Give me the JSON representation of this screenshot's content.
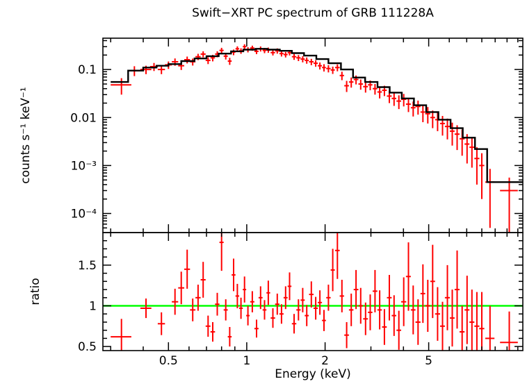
{
  "title": "Swift−XRT PC spectrum of GRB 111228A",
  "colors": {
    "data": "#ff0000",
    "model": "#000000",
    "ratio_line": "#00ff00",
    "axis": "#000000"
  },
  "chart_data": [
    {
      "type": "scatter",
      "panel": "spectrum",
      "title": "Swift−XRT PC spectrum of GRB 111228A",
      "xlabel": "Energy (keV)",
      "ylabel": "counts s⁻¹ keV⁻¹",
      "xscale": "log",
      "yscale": "log",
      "xlim": [
        0.28,
        11.5
      ],
      "ylim": [
        4e-05,
        0.45
      ],
      "grid": false,
      "legend": "none",
      "xticks": [
        {
          "v": 0.5,
          "label": "0.5"
        },
        {
          "v": 1,
          "label": "1"
        },
        {
          "v": 2,
          "label": "2"
        },
        {
          "v": 5,
          "label": "5"
        }
      ],
      "yticks": [
        {
          "v": 0.1,
          "label": "0.1"
        },
        {
          "v": 0.01,
          "label": "0.01"
        },
        {
          "v": 0.001,
          "label": "10⁻³"
        },
        {
          "v": 0.0001,
          "label": "10⁻⁴"
        }
      ],
      "points_format": [
        "energy_keV",
        "energy_halfwidth",
        "counts_s_keV",
        "counts_error"
      ],
      "points": [
        [
          0.33,
          0.03,
          0.048,
          0.018
        ],
        [
          0.37,
          0.02,
          0.095,
          0.022
        ],
        [
          0.41,
          0.02,
          0.1,
          0.02
        ],
        [
          0.44,
          0.015,
          0.115,
          0.022
        ],
        [
          0.47,
          0.015,
          0.1,
          0.02
        ],
        [
          0.5,
          0.015,
          0.125,
          0.022
        ],
        [
          0.53,
          0.015,
          0.145,
          0.025
        ],
        [
          0.56,
          0.015,
          0.12,
          0.022
        ],
        [
          0.59,
          0.015,
          0.16,
          0.026
        ],
        [
          0.62,
          0.015,
          0.145,
          0.024
        ],
        [
          0.65,
          0.015,
          0.185,
          0.028
        ],
        [
          0.68,
          0.015,
          0.21,
          0.03
        ],
        [
          0.71,
          0.015,
          0.155,
          0.025
        ],
        [
          0.74,
          0.015,
          0.175,
          0.027
        ],
        [
          0.77,
          0.015,
          0.21,
          0.03
        ],
        [
          0.8,
          0.015,
          0.25,
          0.033
        ],
        [
          0.83,
          0.015,
          0.19,
          0.028
        ],
        [
          0.86,
          0.015,
          0.15,
          0.025
        ],
        [
          0.89,
          0.015,
          0.23,
          0.031
        ],
        [
          0.92,
          0.015,
          0.27,
          0.034
        ],
        [
          0.95,
          0.015,
          0.245,
          0.032
        ],
        [
          0.98,
          0.015,
          0.3,
          0.036
        ],
        [
          1.01,
          0.015,
          0.26,
          0.033
        ],
        [
          1.05,
          0.02,
          0.28,
          0.034
        ],
        [
          1.09,
          0.02,
          0.24,
          0.031
        ],
        [
          1.13,
          0.02,
          0.27,
          0.033
        ],
        [
          1.17,
          0.02,
          0.25,
          0.031
        ],
        [
          1.21,
          0.02,
          0.255,
          0.032
        ],
        [
          1.26,
          0.025,
          0.225,
          0.029
        ],
        [
          1.31,
          0.025,
          0.245,
          0.031
        ],
        [
          1.36,
          0.025,
          0.215,
          0.028
        ],
        [
          1.41,
          0.025,
          0.205,
          0.027
        ],
        [
          1.46,
          0.025,
          0.225,
          0.029
        ],
        [
          1.52,
          0.03,
          0.185,
          0.026
        ],
        [
          1.58,
          0.03,
          0.175,
          0.025
        ],
        [
          1.64,
          0.03,
          0.165,
          0.024
        ],
        [
          1.7,
          0.03,
          0.155,
          0.023
        ],
        [
          1.77,
          0.035,
          0.145,
          0.022
        ],
        [
          1.84,
          0.035,
          0.135,
          0.021
        ],
        [
          1.91,
          0.035,
          0.12,
          0.02
        ],
        [
          1.98,
          0.035,
          0.11,
          0.019
        ],
        [
          2.06,
          0.04,
          0.105,
          0.018
        ],
        [
          2.14,
          0.04,
          0.098,
          0.017
        ],
        [
          2.23,
          0.045,
          0.11,
          0.018
        ],
        [
          2.32,
          0.045,
          0.075,
          0.015
        ],
        [
          2.42,
          0.05,
          0.046,
          0.012
        ],
        [
          2.52,
          0.05,
          0.055,
          0.013
        ],
        [
          2.63,
          0.055,
          0.062,
          0.013
        ],
        [
          2.74,
          0.055,
          0.05,
          0.012
        ],
        [
          2.86,
          0.06,
          0.044,
          0.011
        ],
        [
          2.98,
          0.06,
          0.048,
          0.011
        ],
        [
          3.11,
          0.065,
          0.04,
          0.01
        ],
        [
          3.24,
          0.065,
          0.034,
          0.009
        ],
        [
          3.38,
          0.07,
          0.037,
          0.009
        ],
        [
          3.53,
          0.075,
          0.028,
          0.008
        ],
        [
          3.68,
          0.075,
          0.025,
          0.0075
        ],
        [
          3.84,
          0.08,
          0.022,
          0.007
        ],
        [
          4.01,
          0.09,
          0.024,
          0.007
        ],
        [
          4.18,
          0.09,
          0.019,
          0.006
        ],
        [
          4.36,
          0.09,
          0.016,
          0.0055
        ],
        [
          4.55,
          0.1,
          0.017,
          0.0055
        ],
        [
          4.75,
          0.1,
          0.013,
          0.005
        ],
        [
          4.96,
          0.11,
          0.012,
          0.0045
        ],
        [
          5.18,
          0.11,
          0.01,
          0.004
        ],
        [
          5.41,
          0.12,
          0.009,
          0.0038
        ],
        [
          5.65,
          0.12,
          0.0075,
          0.0033
        ],
        [
          5.9,
          0.13,
          0.0065,
          0.003
        ],
        [
          6.16,
          0.13,
          0.0052,
          0.0026
        ],
        [
          6.43,
          0.14,
          0.0045,
          0.0024
        ],
        [
          6.72,
          0.15,
          0.0036,
          0.002
        ],
        [
          7.02,
          0.15,
          0.0028,
          0.0017
        ],
        [
          7.33,
          0.16,
          0.0024,
          0.0015
        ],
        [
          7.66,
          0.17,
          0.0014,
          0.001
        ],
        [
          8.0,
          0.18,
          0.001,
          0.0008
        ],
        [
          8.6,
          0.35,
          0.00045,
          0.0004
        ],
        [
          10.2,
          0.8,
          0.0003,
          0.00026
        ]
      ],
      "model_step": {
        "edges": [
          0.3,
          0.35,
          0.4,
          0.45,
          0.5,
          0.56,
          0.63,
          0.7,
          0.78,
          0.87,
          0.97,
          1.08,
          1.2,
          1.34,
          1.49,
          1.66,
          1.85,
          2.06,
          2.3,
          2.56,
          2.85,
          3.18,
          3.54,
          3.94,
          4.39,
          4.89,
          5.45,
          6.07,
          6.76,
          7.53,
          8.39,
          11.5
        ],
        "values": [
          0.055,
          0.095,
          0.11,
          0.12,
          0.13,
          0.15,
          0.17,
          0.19,
          0.215,
          0.24,
          0.26,
          0.27,
          0.26,
          0.245,
          0.22,
          0.195,
          0.165,
          0.135,
          0.1,
          0.068,
          0.055,
          0.043,
          0.033,
          0.025,
          0.018,
          0.013,
          0.009,
          0.006,
          0.0038,
          0.0022,
          0.00045
        ]
      }
    },
    {
      "type": "scatter",
      "panel": "ratio",
      "xlabel": "Energy (keV)",
      "ylabel": "ratio",
      "xscale": "log",
      "yscale": "linear",
      "xlim": [
        0.28,
        11.5
      ],
      "ylim": [
        0.45,
        1.9
      ],
      "grid": false,
      "reference_line": 1,
      "yticks": [
        {
          "v": 0.5,
          "label": "0.5"
        },
        {
          "v": 1,
          "label": "1"
        },
        {
          "v": 1.5,
          "label": "1.5"
        }
      ],
      "points_format": [
        "energy_keV",
        "energy_halfwidth",
        "ratio",
        "ratio_error"
      ],
      "points": [
        [
          0.33,
          0.03,
          0.62,
          0.22
        ],
        [
          0.41,
          0.02,
          0.97,
          0.12
        ],
        [
          0.47,
          0.015,
          0.78,
          0.14
        ],
        [
          0.53,
          0.015,
          1.05,
          0.16
        ],
        [
          0.56,
          0.015,
          1.22,
          0.2
        ],
        [
          0.59,
          0.015,
          1.45,
          0.24
        ],
        [
          0.62,
          0.015,
          0.95,
          0.14
        ],
        [
          0.65,
          0.015,
          1.1,
          0.16
        ],
        [
          0.68,
          0.015,
          1.32,
          0.22
        ],
        [
          0.71,
          0.015,
          0.75,
          0.13
        ],
        [
          0.74,
          0.015,
          0.68,
          0.12
        ],
        [
          0.77,
          0.015,
          1.02,
          0.14
        ],
        [
          0.8,
          0.015,
          1.78,
          0.35
        ],
        [
          0.83,
          0.015,
          0.95,
          0.13
        ],
        [
          0.86,
          0.015,
          0.62,
          0.12
        ],
        [
          0.89,
          0.015,
          1.38,
          0.2
        ],
        [
          0.92,
          0.015,
          1.12,
          0.15
        ],
        [
          0.95,
          0.015,
          0.97,
          0.13
        ],
        [
          0.98,
          0.015,
          1.2,
          0.16
        ],
        [
          1.01,
          0.015,
          0.88,
          0.12
        ],
        [
          1.05,
          0.02,
          1.05,
          0.13
        ],
        [
          1.09,
          0.02,
          0.72,
          0.11
        ],
        [
          1.13,
          0.02,
          1.1,
          0.14
        ],
        [
          1.17,
          0.02,
          0.95,
          0.12
        ],
        [
          1.21,
          0.02,
          1.16,
          0.15
        ],
        [
          1.26,
          0.025,
          0.85,
          0.12
        ],
        [
          1.31,
          0.025,
          1.02,
          0.13
        ],
        [
          1.36,
          0.025,
          0.9,
          0.12
        ],
        [
          1.41,
          0.025,
          1.1,
          0.14
        ],
        [
          1.46,
          0.025,
          1.24,
          0.17
        ],
        [
          1.52,
          0.03,
          0.78,
          0.12
        ],
        [
          1.58,
          0.03,
          0.95,
          0.13
        ],
        [
          1.64,
          0.03,
          1.07,
          0.15
        ],
        [
          1.7,
          0.03,
          0.88,
          0.13
        ],
        [
          1.77,
          0.035,
          1.14,
          0.16
        ],
        [
          1.84,
          0.035,
          0.97,
          0.14
        ],
        [
          1.91,
          0.035,
          1.04,
          0.15
        ],
        [
          1.98,
          0.035,
          0.82,
          0.13
        ],
        [
          2.06,
          0.04,
          1.1,
          0.16
        ],
        [
          2.14,
          0.04,
          1.44,
          0.26
        ],
        [
          2.23,
          0.045,
          1.68,
          0.35
        ],
        [
          2.32,
          0.045,
          1.12,
          0.2
        ],
        [
          2.42,
          0.05,
          0.64,
          0.16
        ],
        [
          2.52,
          0.05,
          0.95,
          0.2
        ],
        [
          2.63,
          0.055,
          1.2,
          0.24
        ],
        [
          2.74,
          0.055,
          1.0,
          0.22
        ],
        [
          2.86,
          0.06,
          0.84,
          0.2
        ],
        [
          2.98,
          0.06,
          0.92,
          0.22
        ],
        [
          3.11,
          0.065,
          1.18,
          0.26
        ],
        [
          3.24,
          0.065,
          0.95,
          0.24
        ],
        [
          3.38,
          0.07,
          0.74,
          0.22
        ],
        [
          3.53,
          0.075,
          1.1,
          0.28
        ],
        [
          3.68,
          0.075,
          0.88,
          0.25
        ],
        [
          3.84,
          0.08,
          0.7,
          0.24
        ],
        [
          4.01,
          0.09,
          1.05,
          0.3
        ],
        [
          4.18,
          0.09,
          1.36,
          0.42
        ],
        [
          4.36,
          0.09,
          0.95,
          0.3
        ],
        [
          4.55,
          0.1,
          0.8,
          0.28
        ],
        [
          4.75,
          0.1,
          1.15,
          0.36
        ],
        [
          4.96,
          0.11,
          1.0,
          0.32
        ],
        [
          5.18,
          0.11,
          1.3,
          0.45
        ],
        [
          5.41,
          0.12,
          0.9,
          0.33
        ],
        [
          5.65,
          0.12,
          0.75,
          0.3
        ],
        [
          5.9,
          0.13,
          1.1,
          0.4
        ],
        [
          6.16,
          0.13,
          0.85,
          0.35
        ],
        [
          6.43,
          0.14,
          1.2,
          0.48
        ],
        [
          6.72,
          0.15,
          0.68,
          0.32
        ],
        [
          7.02,
          0.15,
          0.95,
          0.42
        ],
        [
          7.33,
          0.16,
          0.8,
          0.4
        ],
        [
          7.66,
          0.17,
          0.75,
          0.42
        ],
        [
          8.0,
          0.18,
          0.72,
          0.45
        ],
        [
          8.6,
          0.35,
          0.6,
          0.4
        ],
        [
          10.2,
          0.8,
          0.55,
          0.38
        ]
      ]
    }
  ]
}
